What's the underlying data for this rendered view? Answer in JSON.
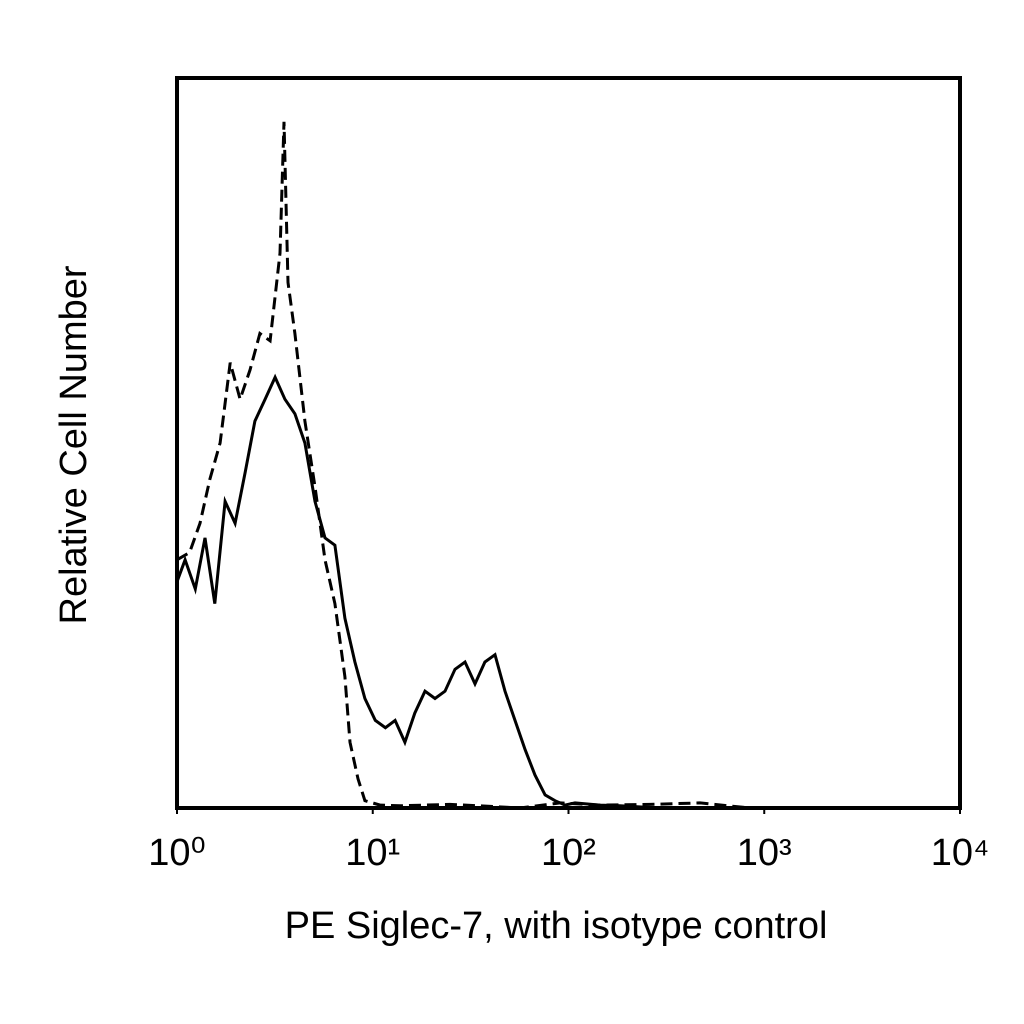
{
  "chart_data": {
    "type": "histogram-overlay",
    "x_label": "PE Siglec-7, with isotype control",
    "y_label": "Relative Cell Number",
    "xscale": "log",
    "xlim": [
      1,
      10000
    ],
    "xticks": [
      {
        "value": 1,
        "label": "10⁰"
      },
      {
        "value": 10,
        "label": "10¹"
      },
      {
        "value": 100,
        "label": "10²"
      },
      {
        "value": 1000,
        "label": "10³"
      },
      {
        "value": 10000,
        "label": "10⁴"
      }
    ],
    "ylim": [
      0,
      100
    ],
    "series": [
      {
        "color": "#000000",
        "linestyle": "solid",
        "x": [
          1,
          1.1,
          1.24,
          1.39,
          1.56,
          1.76,
          1.98,
          2.23,
          2.5,
          2.82,
          3.17,
          3.56,
          4.0,
          4.5,
          5.07,
          5.7,
          6.41,
          7.21,
          8.11,
          9.12,
          10.3,
          11.6,
          13,
          14.6,
          16.4,
          18.5,
          20.8,
          23.4,
          26.3,
          29.6,
          33.3,
          37.4,
          42.1,
          47.4,
          53.3,
          60,
          67.4,
          75.9,
          85.3,
          96,
          108,
          145,
          183,
          293,
          10000
        ],
        "values": [
          31,
          34,
          30,
          37,
          28,
          42,
          39,
          46,
          53,
          56,
          59,
          56,
          54,
          50,
          42,
          37,
          36,
          26,
          20,
          15,
          12,
          11,
          12,
          9,
          13,
          16,
          15,
          16,
          19,
          20,
          17,
          20,
          21,
          16,
          12,
          8,
          4.5,
          1.8,
          1,
          0.4,
          0.7,
          0.4,
          0.3,
          0,
          0
        ]
      },
      {
        "color": "#000000",
        "linestyle": "dashed",
        "x": [
          1,
          1.16,
          1.31,
          1.47,
          1.66,
          1.87,
          2.1,
          2.36,
          2.65,
          2.99,
          3.36,
          3.52,
          3.69,
          4.0,
          4.5,
          5.07,
          5.7,
          6.41,
          7.21,
          7.65,
          8.41,
          9.12,
          10.9,
          13.8,
          24.8,
          35.3,
          56.5,
          90.5,
          145,
          261,
          470,
          846,
          10000
        ],
        "values": [
          34,
          35,
          39,
          45,
          50,
          61,
          56,
          60,
          65,
          64,
          76,
          94,
          72,
          65,
          53,
          44,
          34,
          28,
          18,
          9,
          4,
          1,
          0.4,
          0.3,
          0.5,
          0.3,
          0,
          0.7,
          0.4,
          0.5,
          0.7,
          0,
          0
        ]
      }
    ]
  }
}
